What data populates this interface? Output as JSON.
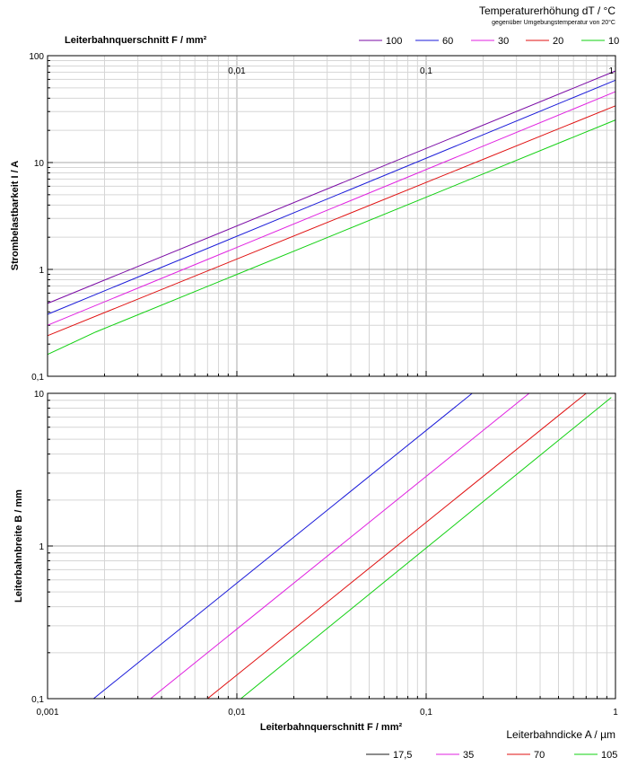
{
  "legend_top": {
    "title": "Temperaturerhöhung dT / °C",
    "subtitle": "gegenüber Umgebungstemperatur von 20°C",
    "items": [
      {
        "label": "100",
        "color": "#7a0aa5"
      },
      {
        "label": "60",
        "color": "#1a1ad9"
      },
      {
        "label": "30",
        "color": "#e020e0"
      },
      {
        "label": "20",
        "color": "#e01010"
      },
      {
        "label": "10",
        "color": "#10d010"
      }
    ]
  },
  "legend_bottom": {
    "title": "Leiterbahndicke A / µm",
    "items": [
      {
        "label": "17,5",
        "color": "#1a1a1a"
      },
      {
        "label": "35",
        "color": "#e020e0"
      },
      {
        "label": "70",
        "color": "#e01010"
      },
      {
        "label": "105",
        "color": "#10d010"
      }
    ]
  },
  "chart_data": [
    {
      "type": "line",
      "xlabel": "Leiterbahnquerschnitt F / mm²",
      "ylabel": "Strombelastbarkeit I / A",
      "xscale": "log",
      "yscale": "log",
      "xlim": [
        0.001,
        1
      ],
      "ylim": [
        0.1,
        100
      ],
      "grid": true,
      "x_tick_labels": [
        "0,01",
        "0,1",
        "1"
      ],
      "y_tick_labels": [
        "0,1",
        "1",
        "10",
        "100"
      ],
      "series": [
        {
          "name": "100",
          "color": "#7a0aa5",
          "x": [
            0.001,
            1
          ],
          "y": [
            0.48,
            72
          ]
        },
        {
          "name": "60",
          "color": "#1a1ad9",
          "x": [
            0.001,
            1
          ],
          "y": [
            0.38,
            59
          ]
        },
        {
          "name": "30",
          "color": "#e020e0",
          "x": [
            0.001,
            1
          ],
          "y": [
            0.3,
            46
          ]
        },
        {
          "name": "20",
          "color": "#e01010",
          "x": [
            0.001,
            1
          ],
          "y": [
            0.24,
            34
          ]
        },
        {
          "name": "10",
          "color": "#10d010",
          "x": [
            0.001,
            0.0018,
            1
          ],
          "y": [
            0.16,
            0.26,
            25
          ]
        }
      ]
    },
    {
      "type": "line",
      "xlabel": "Leiterbahnquerschnitt F / mm²",
      "ylabel": "Leiterbahnbreite B / mm",
      "xscale": "log",
      "yscale": "log",
      "xlim": [
        0.001,
        1
      ],
      "ylim": [
        0.1,
        10
      ],
      "grid": true,
      "x_tick_labels": [
        "0,001",
        "0,01",
        "0,1",
        "1"
      ],
      "y_tick_labels": [
        "0,1",
        "1",
        "10"
      ],
      "series": [
        {
          "name": "17,5",
          "color": "#1a1ad9",
          "x": [
            0.00175,
            0.175
          ],
          "y": [
            0.1,
            10
          ]
        },
        {
          "name": "35",
          "color": "#e020e0",
          "x": [
            0.0035,
            0.35
          ],
          "y": [
            0.1,
            10
          ]
        },
        {
          "name": "70",
          "color": "#e01010",
          "x": [
            0.007,
            0.7
          ],
          "y": [
            0.1,
            10
          ]
        },
        {
          "name": "105",
          "color": "#10d010",
          "x": [
            0.0105,
            0.95
          ],
          "y": [
            0.1,
            9.4
          ]
        }
      ]
    }
  ]
}
